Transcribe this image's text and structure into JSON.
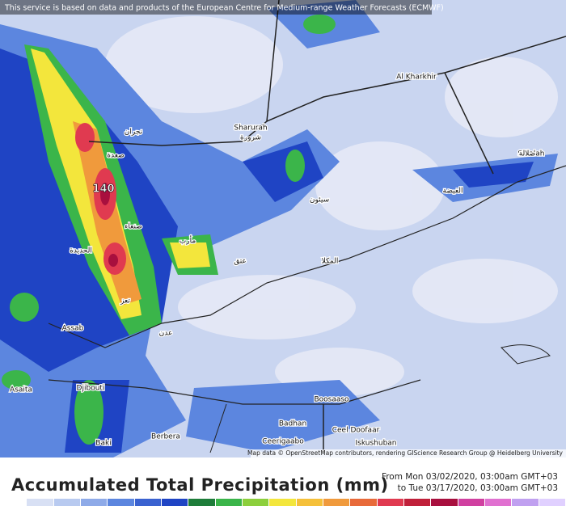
{
  "header": {
    "notice": "This service is based on data and products of the European Centre for Medium-range Weather Forecasts (ECMWF)"
  },
  "map": {
    "labels": [
      "Al Kharkhir",
      "Sharurah",
      "شرورة",
      "Salalah",
      "صلالة",
      "نجران",
      "صعدة",
      "صنعاء",
      "الحديدة",
      "تعز",
      "عدن",
      "مأرب",
      "عتق",
      "سيئون",
      "المكلا",
      "الغيضة",
      "Assab",
      "Asaita",
      "Djibouti",
      "Boosaaso",
      "Badhan",
      "Ceel Doofaar",
      "Ceerigaabo",
      "Berbera",
      "Baki",
      "Iskushuban"
    ],
    "peak_label": "140",
    "attribution": "Map data © OpenStreetMap contributors, rendering GIScience Research Group @ Heidelberg University"
  },
  "footer": {
    "title": "Accumulated Total Precipitation (mm)",
    "from": "From Mon 03/02/2020, 03:00am GMT+03",
    "to": "to Tue 03/17/2020, 03:00am GMT+03"
  }
}
